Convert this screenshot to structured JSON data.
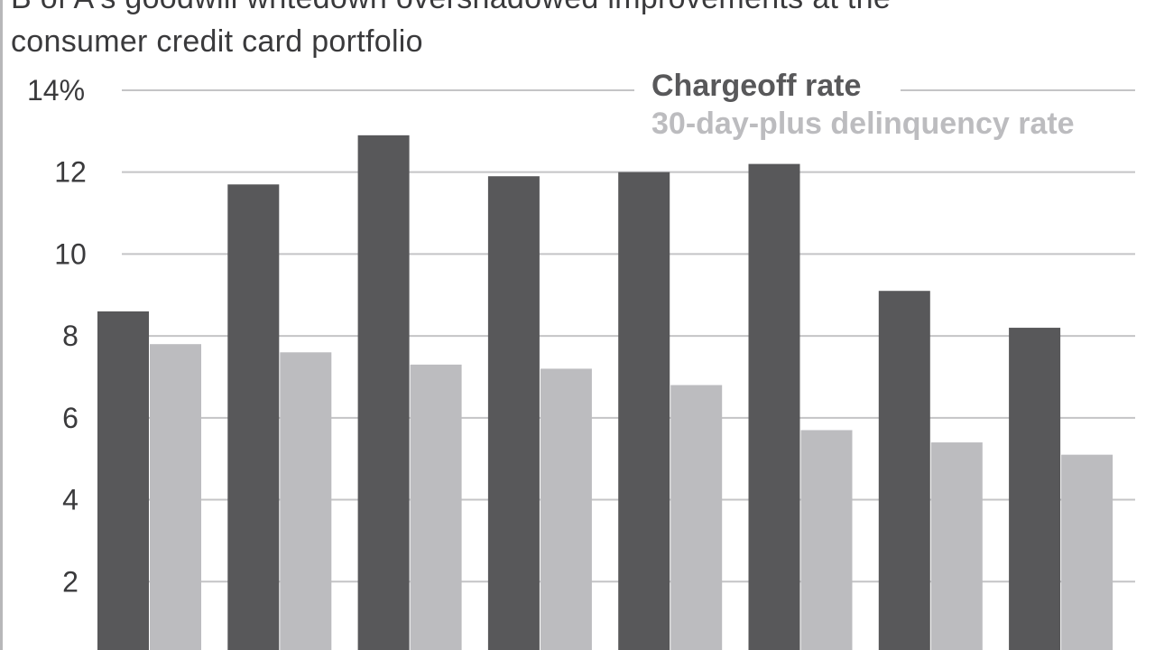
{
  "title_lines": [
    "B of A's goodwill writedown overshadowed improvements at the",
    "consumer credit card portfolio"
  ],
  "chart_data": {
    "type": "bar",
    "title": "B of A's goodwill writedown overshadowed improvements at the consumer credit card portfolio",
    "y_tick_labels": [
      "2",
      "4",
      "6",
      "8",
      "10",
      "12",
      "14%"
    ],
    "y_ticks": [
      2,
      4,
      6,
      8,
      10,
      12,
      14
    ],
    "ylim": [
      0,
      14
    ],
    "grid": true,
    "legend_position": "top-right",
    "series": [
      {
        "name": "Chargeoff rate",
        "color": "#58585a",
        "values": [
          8.6,
          11.7,
          12.9,
          11.9,
          12.0,
          12.2,
          9.1,
          8.2
        ]
      },
      {
        "name": "30-day-plus delinquency rate",
        "color": "#bcbcbf",
        "values": [
          7.8,
          7.6,
          7.3,
          7.2,
          6.8,
          5.7,
          5.4,
          5.1
        ]
      }
    ]
  },
  "colors": {
    "title": "#3a3a3c",
    "grid": "#c4c4c6",
    "axis_text": "#3a3a3c"
  }
}
